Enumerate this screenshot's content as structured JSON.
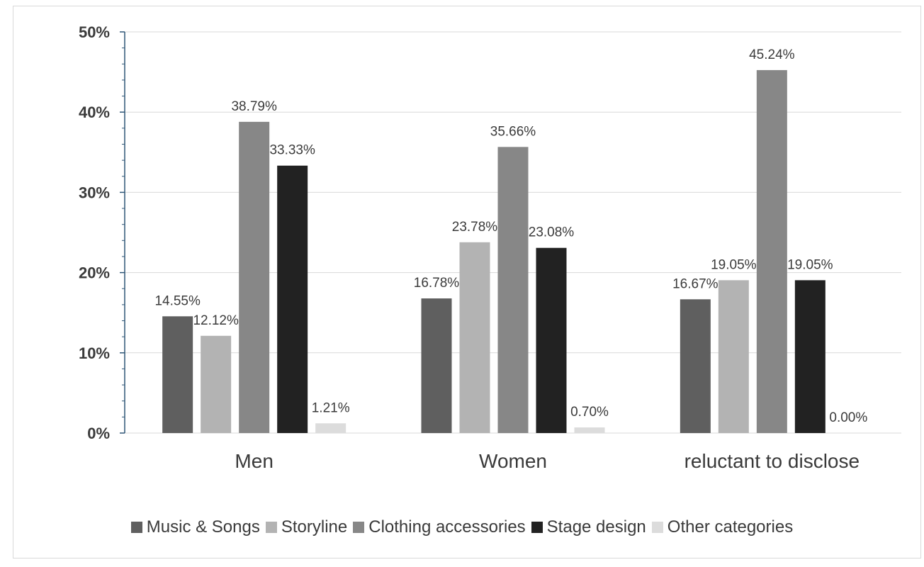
{
  "chart_data": {
    "type": "bar",
    "categories": [
      "Men",
      "Women",
      "reluctant to disclose"
    ],
    "series": [
      {
        "name": "Music & Songs",
        "values": [
          14.55,
          16.78,
          16.67
        ],
        "labels": [
          "14.55%",
          "16.78%",
          "16.67%"
        ],
        "color": "#5f5f5f"
      },
      {
        "name": "Storyline",
        "values": [
          12.12,
          23.78,
          19.05
        ],
        "labels": [
          "12.12%",
          "23.78%",
          "19.05%"
        ],
        "color": "#b3b3b3"
      },
      {
        "name": "Clothing accessories",
        "values": [
          38.79,
          35.66,
          45.24
        ],
        "labels": [
          "38.79%",
          "35.66%",
          "45.24%"
        ],
        "color": "#878787"
      },
      {
        "name": "Stage design",
        "values": [
          33.33,
          23.08,
          19.05
        ],
        "labels": [
          "33.33%",
          "23.08%",
          "19.05%"
        ],
        "color": "#222222"
      },
      {
        "name": "Other categories",
        "values": [
          1.21,
          0.7,
          0.0
        ],
        "labels": [
          "1.21%",
          "0.70%",
          "0.00%"
        ],
        "color": "#dcdcdc"
      }
    ],
    "yticks": [
      "0%",
      "10%",
      "20%",
      "30%",
      "40%",
      "50%"
    ],
    "ylim": [
      0,
      50
    ],
    "grid": true,
    "legend_position": "bottom",
    "title": "",
    "xlabel": "",
    "ylabel": ""
  }
}
